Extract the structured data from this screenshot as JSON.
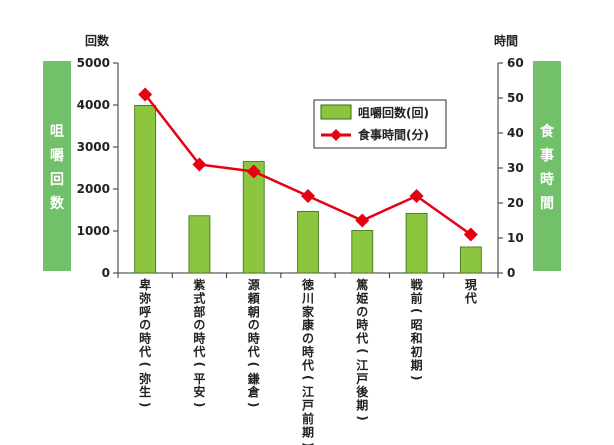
{
  "chart_data": {
    "type": "bar+line",
    "categories": [
      "卑弥呼の時代(弥生)",
      "紫式部の時代(平安)",
      "源頼朝の時代(鎌倉)",
      "徳川家康の時代(江戸前期)",
      "篤姫の時代(江戸後期)",
      "戦前(昭和初期)",
      "現代"
    ],
    "left_axis": {
      "label": "回数",
      "side_label": "咀嚼回数",
      "ticks": [
        "0",
        "1000",
        "2000",
        "3000",
        "4000",
        "5000"
      ],
      "min": 0,
      "max": 5000
    },
    "right_axis": {
      "label": "時間",
      "side_label": "食事時間",
      "ticks": [
        "0",
        "10",
        "20",
        "30",
        "40",
        "50",
        "60"
      ],
      "min": 0,
      "max": 60
    },
    "series": [
      {
        "name": "咀嚼回数(回)",
        "type": "bar",
        "axis": "left",
        "color": "#8cc63f",
        "values": [
          3990,
          1363,
          2654,
          1465,
          1012,
          1420,
          620
        ]
      },
      {
        "name": "食事時間(分)",
        "type": "line",
        "axis": "right",
        "color": "#e60012",
        "values": [
          51,
          31,
          29,
          22,
          15,
          22,
          11
        ]
      }
    ],
    "legend_position": "top-right",
    "grid": false,
    "colors": {
      "side_panel": "#73c06b",
      "bar_fill": "#8cc63f",
      "bar_stroke": "#3a6b16",
      "line": "#e60012",
      "axis": "#333333"
    }
  }
}
